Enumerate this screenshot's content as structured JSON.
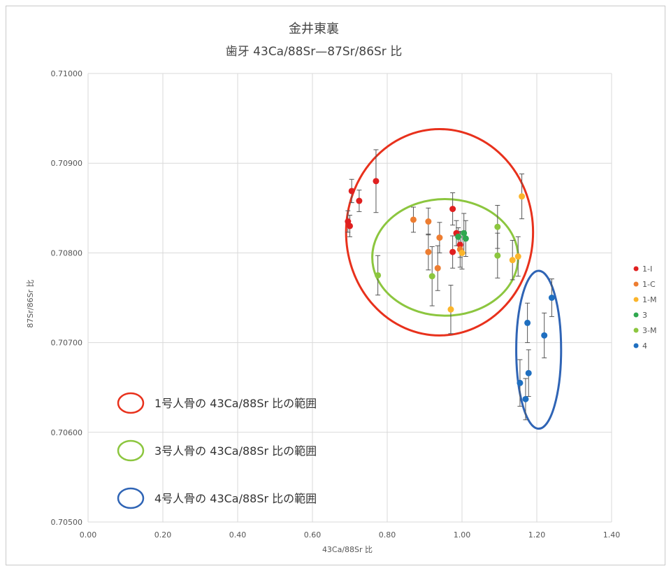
{
  "chart_data": {
    "type": "scatter",
    "title": "金井東裏",
    "subtitle": "歯牙 43Ca/88Sr—87Sr/86Sr 比",
    "xlabel": "43Ca/88Sr 比",
    "ylabel": "87Sr/86Sr 比",
    "xlim": [
      0.0,
      1.4
    ],
    "ylim": [
      0.705,
      0.71
    ],
    "x_ticks": [
      "0.00",
      "0.20",
      "0.40",
      "0.60",
      "0.80",
      "1.00",
      "1.20",
      "1.40"
    ],
    "y_ticks": [
      "0.70500",
      "0.70600",
      "0.70700",
      "0.70800",
      "0.70900",
      "0.71000"
    ],
    "grid": true,
    "legend_position": "right",
    "series": [
      {
        "name": "1-I",
        "color": "#e02020",
        "points": [
          {
            "x": 0.695,
            "y": 0.70835,
            "err": 0.00012
          },
          {
            "x": 0.7,
            "y": 0.7083,
            "err": 0.00012
          },
          {
            "x": 0.705,
            "y": 0.70869,
            "err": 0.00013
          },
          {
            "x": 0.725,
            "y": 0.70858,
            "err": 0.00012
          },
          {
            "x": 0.77,
            "y": 0.7088,
            "err": 0.00035
          },
          {
            "x": 0.975,
            "y": 0.70849,
            "err": 0.00018
          },
          {
            "x": 0.975,
            "y": 0.70801,
            "err": 0.00018
          },
          {
            "x": 0.985,
            "y": 0.70822,
            "err": 0.00014
          },
          {
            "x": 0.995,
            "y": 0.70809,
            "err": 0.00014
          }
        ]
      },
      {
        "name": "1-C",
        "color": "#ed7d31",
        "points": [
          {
            "x": 0.87,
            "y": 0.70837,
            "err": 0.00014
          },
          {
            "x": 0.91,
            "y": 0.70835,
            "err": 0.00015
          },
          {
            "x": 0.91,
            "y": 0.70801,
            "err": 0.0002
          },
          {
            "x": 0.935,
            "y": 0.70783,
            "err": 0.00025
          },
          {
            "x": 0.94,
            "y": 0.70817,
            "err": 0.00017
          },
          {
            "x": 0.995,
            "y": 0.70804,
            "err": 0.0002
          }
        ]
      },
      {
        "name": "1-M",
        "color": "#fbb52b",
        "points": [
          {
            "x": 0.97,
            "y": 0.70737,
            "err": 0.00027
          },
          {
            "x": 1.0,
            "y": 0.708,
            "err": 0.00018
          },
          {
            "x": 1.135,
            "y": 0.70792,
            "err": 0.00022
          },
          {
            "x": 1.15,
            "y": 0.70796,
            "err": 0.00022
          },
          {
            "x": 1.16,
            "y": 0.70863,
            "err": 0.00025
          }
        ]
      },
      {
        "name": "3",
        "color": "#2fa84f",
        "points": [
          {
            "x": 0.99,
            "y": 0.70818,
            "err": 0.0001
          },
          {
            "x": 1.005,
            "y": 0.70822,
            "err": 0.00022
          },
          {
            "x": 1.01,
            "y": 0.70816,
            "err": 0.0002
          }
        ]
      },
      {
        "name": "3-M",
        "color": "#8cc63f",
        "points": [
          {
            "x": 0.775,
            "y": 0.70775,
            "err": 0.00022
          },
          {
            "x": 0.92,
            "y": 0.70774,
            "err": 0.00033
          },
          {
            "x": 1.095,
            "y": 0.70829,
            "err": 0.00024
          },
          {
            "x": 1.095,
            "y": 0.70797,
            "err": 0.00025
          }
        ]
      },
      {
        "name": "4",
        "color": "#1f6fc0",
        "points": [
          {
            "x": 1.155,
            "y": 0.70655,
            "err": 0.00026
          },
          {
            "x": 1.17,
            "y": 0.70637,
            "err": 0.00023
          },
          {
            "x": 1.175,
            "y": 0.70722,
            "err": 0.00022
          },
          {
            "x": 1.178,
            "y": 0.70666,
            "err": 0.00026
          },
          {
            "x": 1.22,
            "y": 0.70708,
            "err": 0.00025
          },
          {
            "x": 1.24,
            "y": 0.7075,
            "err": 0.00021
          }
        ]
      }
    ],
    "ranges": [
      {
        "label": "1号人骨の 43Ca/88Sr 比の範囲",
        "color": "#e8311c",
        "cx": 0.94,
        "cy": 0.70823,
        "rx": 0.25,
        "ry": 0.00115
      },
      {
        "label": "3号人骨の 43Ca/88Sr 比の範囲",
        "color": "#8cc63f",
        "cx": 0.955,
        "cy": 0.70795,
        "rx": 0.195,
        "ry": 0.00065
      },
      {
        "label": "4号人骨の 43Ca/88Sr 比の範囲",
        "color": "#2f64b5",
        "cx": 1.205,
        "cy": 0.70692,
        "rx": 0.06,
        "ry": 0.00088
      }
    ]
  }
}
